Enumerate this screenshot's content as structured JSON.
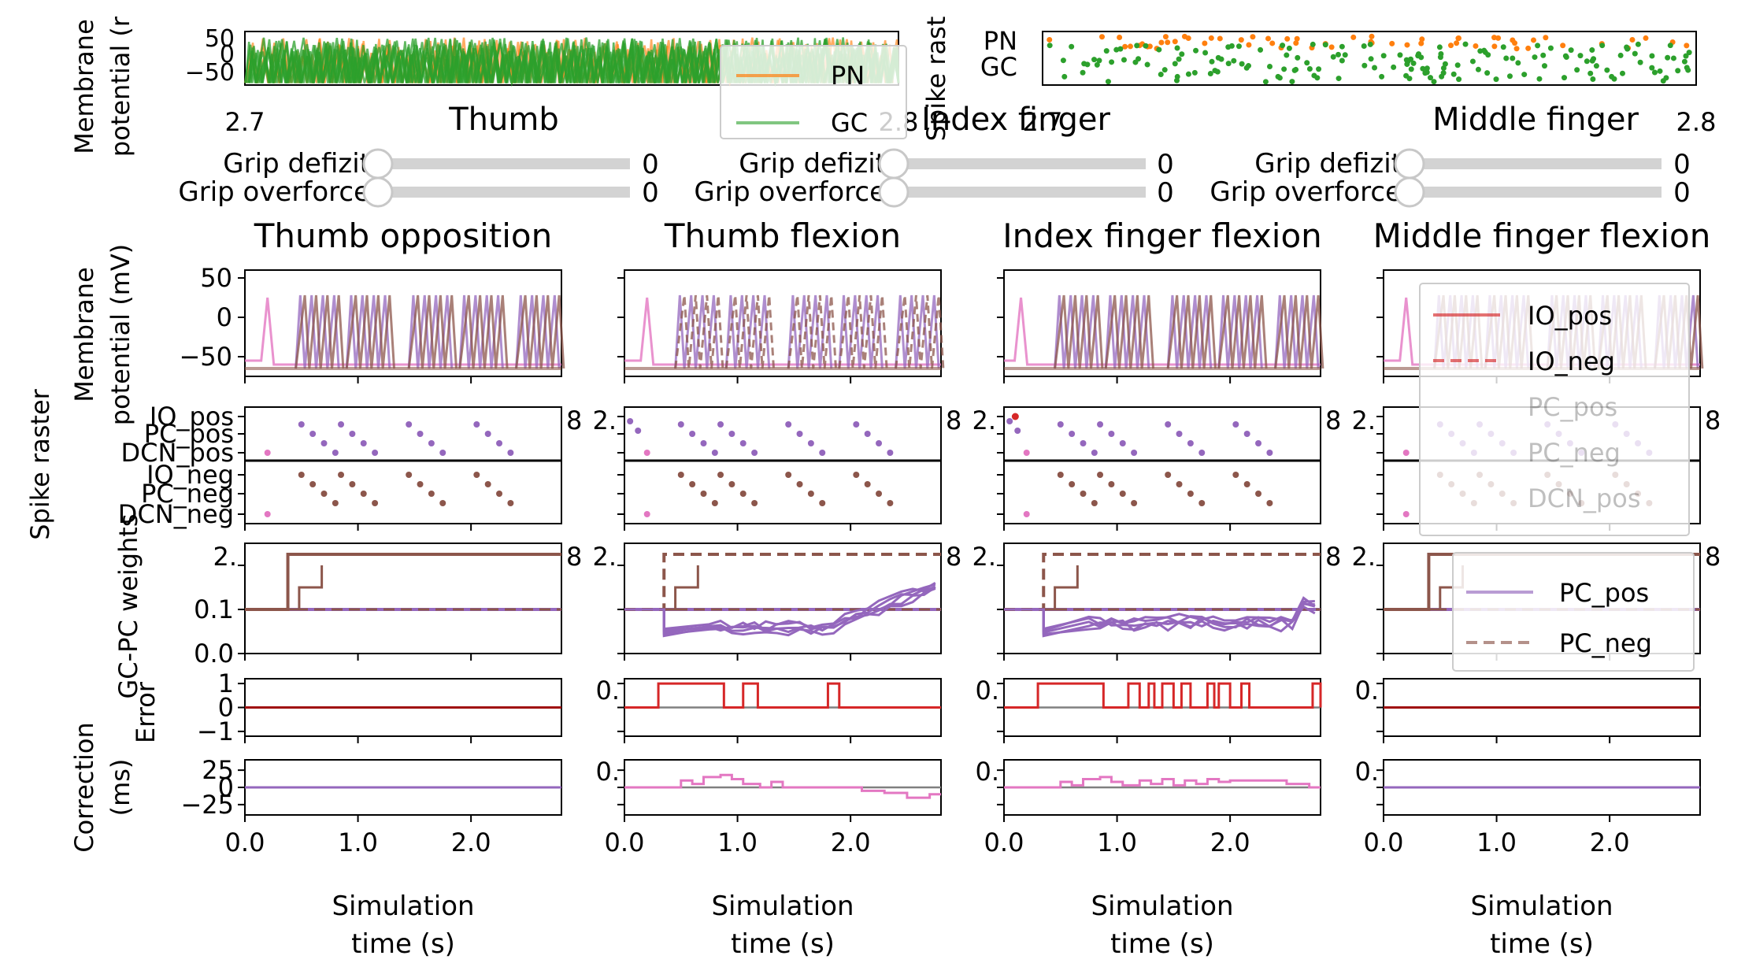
{
  "colors": {
    "pn": "#ff7f0e",
    "gc": "#2ca02c",
    "io": "#e377c2",
    "pc_pos": "#9467bd",
    "pc_neg": "#8c564b",
    "error": "#d62728",
    "correction": "#e377c2",
    "slider_track": "#d3d3d3",
    "zero_line": "#808080"
  },
  "top_panels": {
    "membrane": {
      "ylabel_line1": "Membrane",
      "ylabel_line2": "potential (r",
      "yticks": [
        "50",
        "0",
        "−50"
      ],
      "xticks": [
        "2.7",
        "2.8"
      ],
      "legend": [
        "PN",
        "GC"
      ]
    },
    "raster": {
      "ylabel": "Spike rast",
      "yticks": [
        "PN",
        "GC"
      ],
      "xticks": [
        "2.7",
        "2.8"
      ]
    }
  },
  "fingers": [
    {
      "title": "Thumb",
      "defizit_label": "Grip defizit",
      "defizit_value": "0",
      "overforce_label": "Grip overforce",
      "overforce_value": "0"
    },
    {
      "title": "Index finger",
      "defizit_label": "Grip defizit",
      "defizit_value": "0",
      "overforce_label": "Grip overforce",
      "overforce_value": "0"
    },
    {
      "title": "Middle finger",
      "defizit_label": "Grip defizit",
      "defizit_value": "0",
      "overforce_label": "Grip overforce",
      "overforce_value": "0"
    }
  ],
  "columns": [
    {
      "title": "Thumb opposition"
    },
    {
      "title": "Thumb flexion"
    },
    {
      "title": "Index finger flexion"
    },
    {
      "title": "Middle finger flexion"
    }
  ],
  "row_labels": {
    "membrane_line1": "Membrane",
    "membrane_line2": "potential (mV)",
    "raster_outer": "Spike raster",
    "weights": "GC-PC weights",
    "error": "Error",
    "correction_line1": "Correction",
    "correction_line2": "(ms)"
  },
  "ticks": {
    "membrane_y": [
      "50",
      "0",
      "−50"
    ],
    "raster_y": [
      "IO_pos",
      "PC_pos",
      "DCN_pos",
      "IO_neg",
      "PC_neg",
      "DCN_neg"
    ],
    "weights_y": [
      "0.2",
      "0.1",
      "0.0"
    ],
    "error_y": [
      "1",
      "0",
      "−1"
    ],
    "correction_y": [
      "25",
      "0",
      "−25"
    ],
    "time_x": [
      "0.0",
      "1.0",
      "2.0"
    ],
    "overlap_left": "2.",
    "overlap_right": "8",
    "overlap_zero": "0."
  },
  "xlabel_line1": "Simulation",
  "xlabel_line2": "time (s)",
  "legends": {
    "io": [
      "IO_pos",
      "IO_neg",
      "PC_pos",
      "PC_neg",
      "DCN_pos"
    ],
    "pc": [
      "PC_pos",
      "PC_neg"
    ]
  },
  "chart_data": [
    {
      "type": "line",
      "title": "",
      "xlabel": "",
      "ylabel": "Membrane potential",
      "x_range": [
        2.7,
        2.8
      ],
      "ylim": [
        -75,
        60
      ],
      "series": [
        {
          "name": "PN"
        },
        {
          "name": "GC"
        }
      ]
    },
    {
      "type": "scatter",
      "ylabel": "Spike raster",
      "categories": [
        "PN",
        "GC"
      ],
      "x_range": [
        2.7,
        2.8
      ]
    },
    {
      "type": "line",
      "panel": "error",
      "columns": [
        "Thumb opposition",
        "Thumb flexion",
        "Index finger flexion",
        "Middle finger flexion"
      ],
      "ylim": [
        -1.2,
        1.2
      ],
      "x_range": [
        0,
        2.8
      ],
      "series": [
        {
          "column": "Thumb opposition",
          "steps": [
            [
              0,
              0
            ],
            [
              2.8,
              0
            ]
          ]
        },
        {
          "column": "Thumb flexion",
          "steps": [
            [
              0,
              0
            ],
            [
              0.3,
              1
            ],
            [
              0.88,
              0
            ],
            [
              1.05,
              1
            ],
            [
              1.18,
              0
            ],
            [
              1.8,
              1
            ],
            [
              1.9,
              0
            ],
            [
              2.8,
              0
            ]
          ]
        },
        {
          "column": "Index finger flexion",
          "steps": [
            [
              0,
              0
            ],
            [
              0.3,
              1
            ],
            [
              0.88,
              0
            ],
            [
              1.1,
              1
            ],
            [
              1.2,
              0
            ],
            [
              1.28,
              1
            ],
            [
              1.33,
              0
            ],
            [
              1.4,
              1
            ],
            [
              1.5,
              0
            ],
            [
              1.57,
              1
            ],
            [
              1.65,
              0
            ],
            [
              1.8,
              1
            ],
            [
              1.86,
              0
            ],
            [
              1.9,
              1
            ],
            [
              2.0,
              0
            ],
            [
              2.1,
              1
            ],
            [
              2.17,
              0
            ],
            [
              2.73,
              1
            ],
            [
              2.8,
              0
            ]
          ]
        },
        {
          "column": "Middle finger flexion",
          "steps": [
            [
              0,
              0
            ],
            [
              2.8,
              0
            ]
          ]
        }
      ]
    },
    {
      "type": "line",
      "panel": "correction",
      "ylim": [
        -40,
        40
      ],
      "x_range": [
        0,
        2.8
      ],
      "series": [
        {
          "column": "Thumb opposition",
          "steps": [
            [
              0,
              0
            ],
            [
              2.8,
              0
            ]
          ]
        },
        {
          "column": "Thumb flexion",
          "steps": [
            [
              0,
              0
            ],
            [
              0.5,
              10
            ],
            [
              0.6,
              5
            ],
            [
              0.7,
              15
            ],
            [
              0.85,
              18
            ],
            [
              0.95,
              12
            ],
            [
              1.05,
              5
            ],
            [
              1.2,
              0
            ],
            [
              1.3,
              8
            ],
            [
              1.4,
              0
            ],
            [
              2.1,
              -5
            ],
            [
              2.3,
              -8
            ],
            [
              2.5,
              -15
            ],
            [
              2.7,
              -10
            ],
            [
              2.8,
              -10
            ]
          ]
        },
        {
          "column": "Index finger flexion",
          "steps": [
            [
              0,
              0
            ],
            [
              0.5,
              8
            ],
            [
              0.6,
              3
            ],
            [
              0.7,
              12
            ],
            [
              0.85,
              15
            ],
            [
              0.95,
              8
            ],
            [
              1.05,
              3
            ],
            [
              1.2,
              10
            ],
            [
              1.3,
              5
            ],
            [
              1.4,
              12
            ],
            [
              1.5,
              3
            ],
            [
              1.6,
              10
            ],
            [
              1.7,
              5
            ],
            [
              1.8,
              12
            ],
            [
              1.9,
              8
            ],
            [
              2.0,
              10
            ],
            [
              2.1,
              10
            ],
            [
              2.5,
              5
            ],
            [
              2.7,
              0
            ],
            [
              2.8,
              0
            ]
          ]
        },
        {
          "column": "Middle finger flexion",
          "steps": [
            [
              0,
              0
            ],
            [
              2.8,
              0
            ]
          ]
        }
      ]
    }
  ]
}
